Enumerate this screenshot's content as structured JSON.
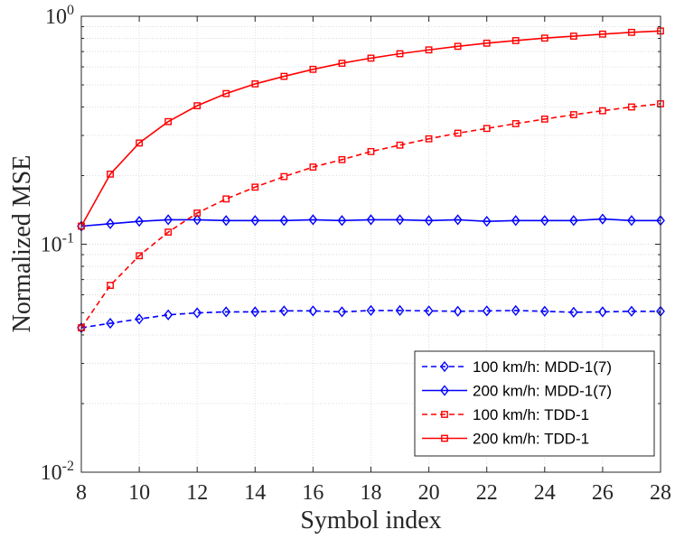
{
  "chart_data": {
    "type": "line",
    "title": "",
    "xlabel": "Symbol index",
    "ylabel": "Normalized MSE",
    "xlim": [
      8,
      28
    ],
    "ylim": [
      0.01,
      1
    ],
    "yscale": "log",
    "xticks": [
      8,
      10,
      12,
      14,
      16,
      18,
      20,
      22,
      24,
      26,
      28
    ],
    "yticks": [
      {
        "value": 0.01,
        "base": "10",
        "exp": "-2"
      },
      {
        "value": 0.1,
        "base": "10",
        "exp": "-1"
      },
      {
        "value": 1,
        "base": "10",
        "exp": "0"
      }
    ],
    "grid": true,
    "legend_position": "bottom-right",
    "x": [
      8,
      9,
      10,
      11,
      12,
      13,
      14,
      15,
      16,
      17,
      18,
      19,
      20,
      21,
      22,
      23,
      24,
      25,
      26,
      27,
      28
    ],
    "series": [
      {
        "name": "100 km/h: MDD-1(7)",
        "color": "#0000ff",
        "dash": "dashed",
        "marker": "diamond",
        "values": [
          0.043,
          0.045,
          0.047,
          0.049,
          0.05,
          0.0505,
          0.0505,
          0.051,
          0.051,
          0.0505,
          0.0512,
          0.0512,
          0.051,
          0.0508,
          0.051,
          0.0512,
          0.0508,
          0.0503,
          0.0505,
          0.0508,
          0.0508
        ]
      },
      {
        "name": "200 km/h: MDD-1(7)",
        "color": "#0000ff",
        "dash": "solid",
        "marker": "diamond",
        "values": [
          0.12,
          0.123,
          0.126,
          0.128,
          0.128,
          0.127,
          0.127,
          0.127,
          0.128,
          0.127,
          0.128,
          0.128,
          0.127,
          0.128,
          0.126,
          0.127,
          0.127,
          0.127,
          0.129,
          0.127,
          0.127
        ]
      },
      {
        "name": "100 km/h: TDD-1",
        "color": "#ff0000",
        "dash": "dashed",
        "marker": "square",
        "values": [
          0.043,
          0.066,
          0.089,
          0.113,
          0.137,
          0.158,
          0.178,
          0.198,
          0.218,
          0.235,
          0.255,
          0.272,
          0.29,
          0.307,
          0.322,
          0.338,
          0.354,
          0.37,
          0.385,
          0.4,
          0.413
        ]
      },
      {
        "name": "200 km/h: TDD-1",
        "color": "#ff0000",
        "dash": "solid",
        "marker": "square",
        "values": [
          0.12,
          0.203,
          0.278,
          0.345,
          0.405,
          0.458,
          0.505,
          0.545,
          0.585,
          0.622,
          0.655,
          0.685,
          0.712,
          0.738,
          0.762,
          0.782,
          0.802,
          0.818,
          0.835,
          0.85,
          0.862
        ]
      }
    ]
  }
}
